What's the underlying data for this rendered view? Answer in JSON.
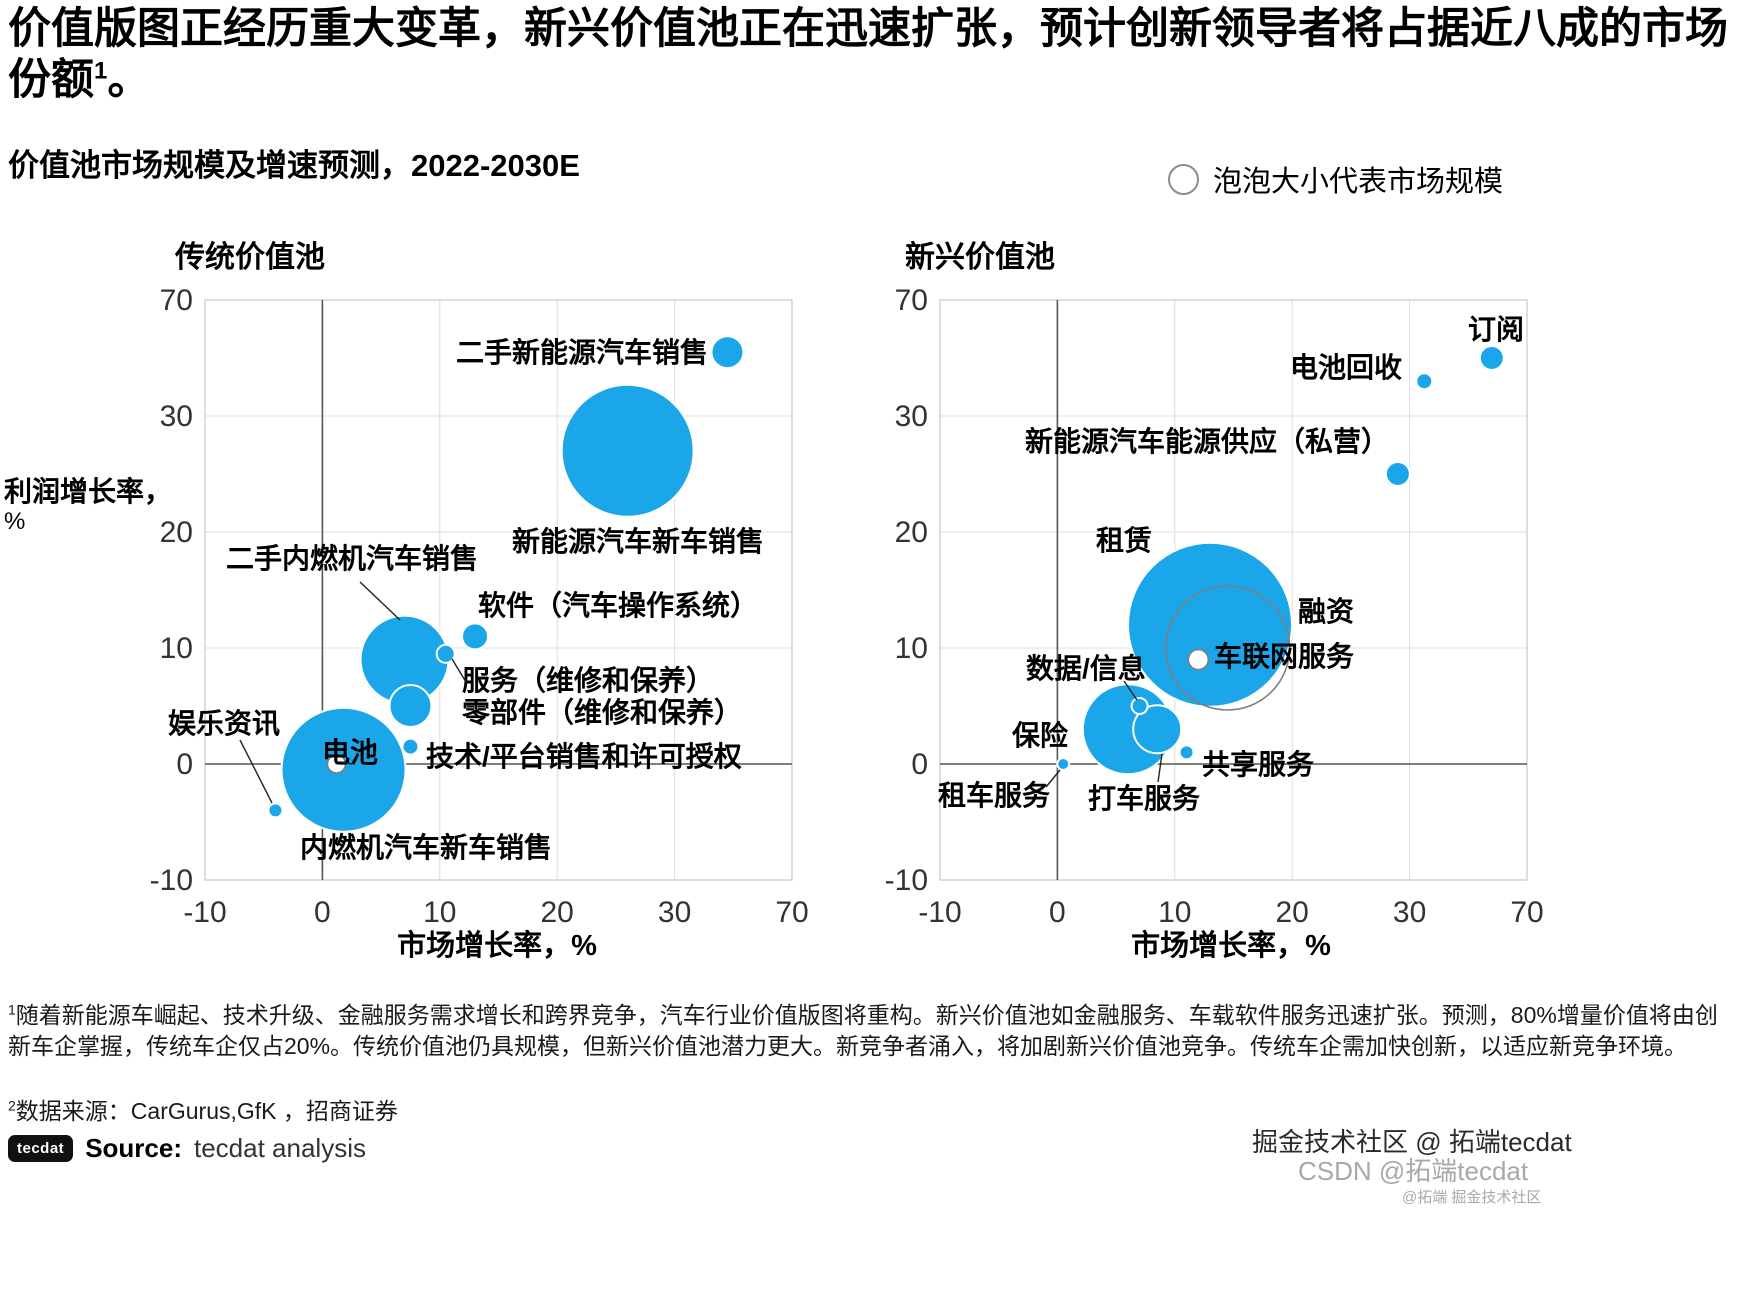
{
  "page": {
    "title_text": "价值版图正经历重大变革，新兴价值池正在迅速扩张，预计创新领导者将占据近八成的市场份额",
    "title_sup": "1",
    "title_suffix": "。",
    "subtitle": "价值池市场规模及增速预测，2022-2030E",
    "legend": "泡泡大小代表市场规模",
    "y_axis_label": "利润增长率，",
    "y_axis_unit": "%",
    "x_axis_label_left": "市场增长率，%",
    "x_axis_label_right": "市场增长率，%",
    "footnote1_sup": "1",
    "footnote1_text": "随着新能源车崛起、技术升级、金融服务需求增长和跨界竞争，汽车行业价值版图将重构。新兴价值池如金融服务、车载软件服务迅速扩张。预测，80%增量价值将由创新车企掌握，传统车企仅占20%。传统价值池仍具规模，但新兴价值池潜力更大。新竞争者涌入，将加剧新兴价值池竞争。传统车企需加快创新，以适应新竞争环境。",
    "footnote2_sup": "2",
    "footnote2_text": "数据来源：CarGurus,GfK ，招商证券",
    "logo_text": "tecdat",
    "source_label": "Source:",
    "source_value": "tecdat analysis",
    "watermark1": "掘金技术社区 @ 拓端tecdat",
    "watermark2": "CSDN @拓端tecdat",
    "watermark3": "@拓端 掘金技术社区"
  },
  "colors": {
    "bubble": "#1aa6e8",
    "bubble_edge": "#ffffff",
    "outline_stroke": "#7f7f7f",
    "grid": "#dcdcdc",
    "border": "#c8c8c8",
    "zero_axis": "#555555",
    "tick_text": "#333333"
  },
  "chart_data": [
    {
      "type": "scatter",
      "subtype": "bubble",
      "title": "传统价值池",
      "xlabel": "市场增长率，%",
      "ylabel": "利润增长率，%",
      "x_ticks": [
        -10,
        0,
        10,
        20,
        30,
        70
      ],
      "y_ticks": [
        70,
        30,
        20,
        10,
        0,
        -10
      ],
      "axis_note": "non-linear axis: tick intervals evenly spaced",
      "size_note": "泡泡大小代表市场规模 (bubble radius r in px)",
      "legend_position": "top-right",
      "grid": true,
      "points": [
        {
          "label": "新能源汽车新车销售",
          "x": 26,
          "y": 27,
          "r": 66,
          "style": "filled"
        },
        {
          "label": "内燃机汽车新车销售",
          "x": 1.8,
          "y": -0.5,
          "r": 62,
          "style": "filled"
        },
        {
          "label": "二手内燃机汽车销售",
          "x": 7,
          "y": 9,
          "r": 44,
          "style": "filled"
        },
        {
          "label": "零部件（维修和保养）",
          "x": 7.5,
          "y": 5,
          "r": 21,
          "style": "filled"
        },
        {
          "label": "二手新能源汽车销售",
          "x": 48,
          "y": 52,
          "r": 16,
          "style": "filled"
        },
        {
          "label": "软件（汽车操作系统）",
          "x": 13,
          "y": 11,
          "r": 13,
          "style": "filled"
        },
        {
          "label": "服务（维修和保养）",
          "x": 10.5,
          "y": 9.5,
          "r": 9,
          "style": "filled"
        },
        {
          "label": "技术/平台销售和许可授权",
          "x": 7.5,
          "y": 1.5,
          "r": 8,
          "style": "filled"
        },
        {
          "label": "娱乐资讯",
          "x": -4,
          "y": -4,
          "r": 7,
          "style": "filled"
        },
        {
          "label": "电池",
          "x": 1.2,
          "y": 0,
          "r": 9,
          "style": "white"
        }
      ]
    },
    {
      "type": "scatter",
      "subtype": "bubble",
      "title": "新兴价值池",
      "xlabel": "市场增长率，%",
      "ylabel": "利润增长率，%",
      "x_ticks": [
        -10,
        0,
        10,
        20,
        30,
        70
      ],
      "y_ticks": [
        70,
        30,
        20,
        10,
        0,
        -10
      ],
      "axis_note": "non-linear axis: tick intervals evenly spaced",
      "size_note": "泡泡大小代表市场规模 (bubble radius r in px)",
      "legend_position": "top-right",
      "grid": true,
      "points": [
        {
          "label": "租赁",
          "x": 13,
          "y": 12,
          "r": 82,
          "style": "filled"
        },
        {
          "label": "融资",
          "x": 14.5,
          "y": 10,
          "r": 62,
          "style": "outline"
        },
        {
          "label": "保险",
          "x": 6,
          "y": 3,
          "r": 45,
          "style": "filled"
        },
        {
          "label": "打车服务",
          "x": 8.5,
          "y": 3,
          "r": 24,
          "style": "filled"
        },
        {
          "label": "车联网服务",
          "x": 12,
          "y": 9,
          "r": 10,
          "style": "white"
        },
        {
          "label": "新能源汽车能源供应（私营）",
          "x": 29,
          "y": 25,
          "r": 12,
          "style": "filled"
        },
        {
          "label": "订阅",
          "x": 58,
          "y": 50,
          "r": 12,
          "style": "filled"
        },
        {
          "label": "电池回收",
          "x": 35,
          "y": 42,
          "r": 8,
          "style": "filled"
        },
        {
          "label": "数据/信息",
          "x": 7,
          "y": 5,
          "r": 8,
          "style": "filled"
        },
        {
          "label": "共享服务",
          "x": 11,
          "y": 1,
          "r": 7,
          "style": "filled"
        },
        {
          "label": "租车服务",
          "x": 0.5,
          "y": 0,
          "r": 6,
          "style": "filled"
        }
      ]
    }
  ]
}
